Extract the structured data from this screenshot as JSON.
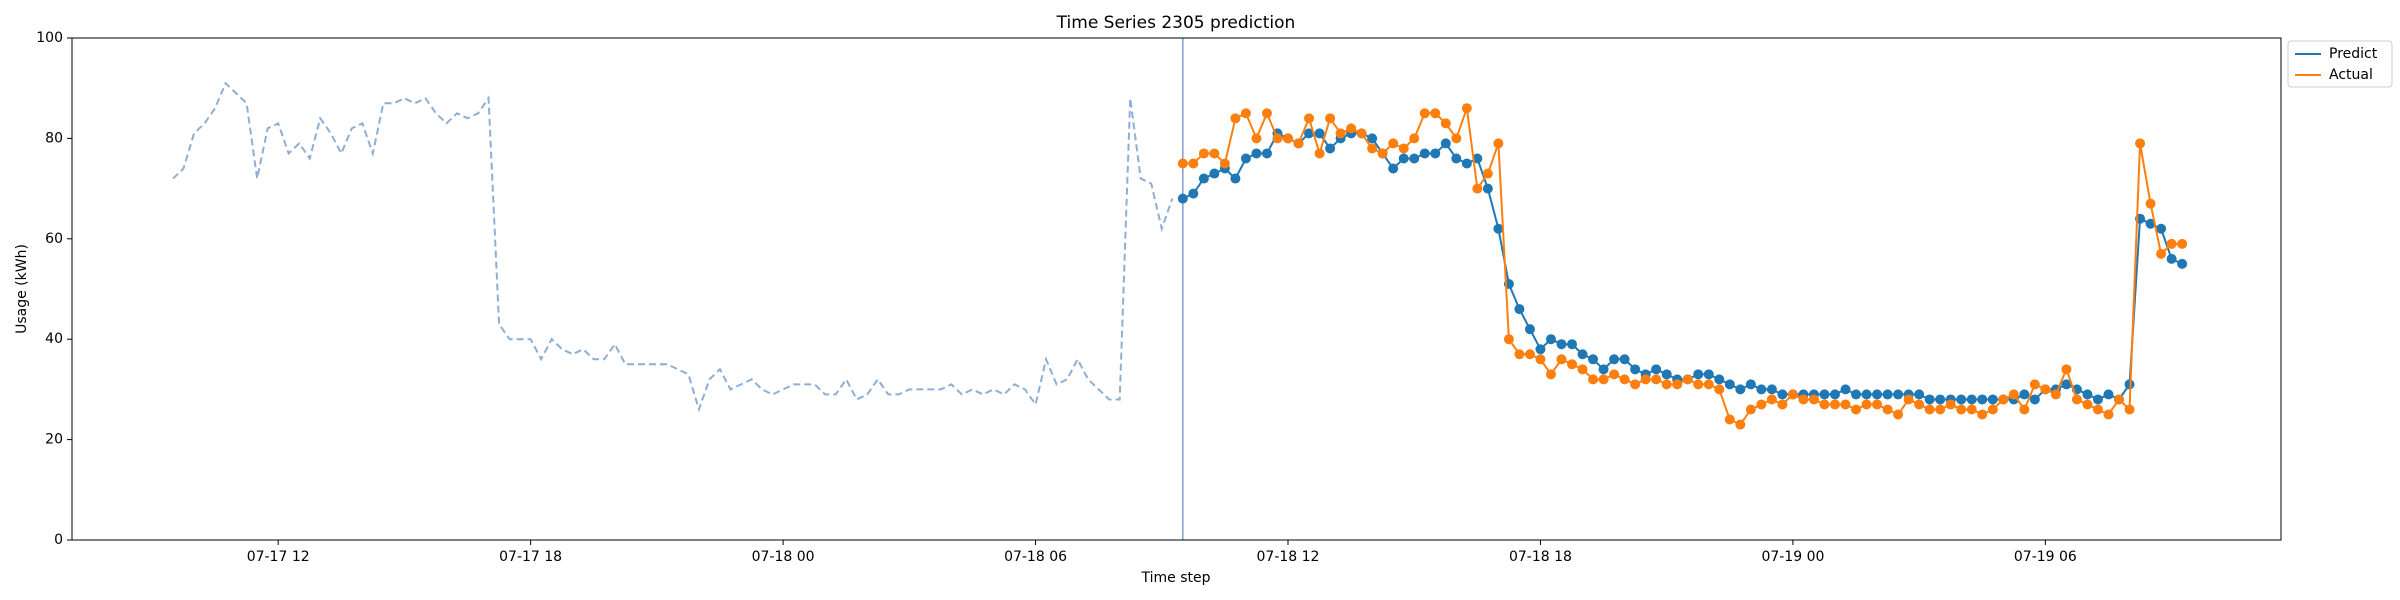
{
  "chart_data": {
    "type": "line",
    "title": "Time Series 2305 prediction",
    "xlabel": "Time step",
    "ylabel": "Usage (kWh)",
    "xlim": [
      7.1,
      59.6
    ],
    "ylim": [
      0,
      100
    ],
    "xticks": [
      {
        "value": 12,
        "label": "07-17 12"
      },
      {
        "value": 18,
        "label": "07-17 18"
      },
      {
        "value": 24,
        "label": "07-18 00"
      },
      {
        "value": 30,
        "label": "07-18 06"
      },
      {
        "value": 36,
        "label": "07-18 12"
      },
      {
        "value": 42,
        "label": "07-18 18"
      },
      {
        "value": 48,
        "label": "07-19 00"
      },
      {
        "value": 54,
        "label": "07-19 06"
      }
    ],
    "yticks": [
      0,
      20,
      40,
      60,
      80,
      100
    ],
    "legend": "upper right outside",
    "forecast_start": 33.5,
    "forecast_line_color": "#7f9fd0",
    "history": {
      "color": "#8faed3",
      "x": [
        9.5,
        9.75,
        10,
        10.25,
        10.5,
        10.75,
        11,
        11.25,
        11.5,
        11.75,
        12,
        12.25,
        12.5,
        12.75,
        13,
        13.25,
        13.5,
        13.75,
        14,
        14.25,
        14.5,
        14.75,
        15,
        15.25,
        15.5,
        15.75,
        16,
        16.25,
        16.5,
        16.75,
        17,
        17.25,
        17.5,
        17.75,
        18,
        18.25,
        18.5,
        18.75,
        19,
        19.25,
        19.5,
        19.75,
        20,
        20.25,
        20.5,
        20.75,
        21,
        21.25,
        21.5,
        21.75,
        22,
        22.25,
        22.5,
        22.75,
        23,
        23.25,
        23.5,
        23.75,
        24,
        24.25,
        24.5,
        24.75,
        25,
        25.25,
        25.5,
        25.75,
        26,
        26.25,
        26.5,
        26.75,
        27,
        27.25,
        27.5,
        27.75,
        28,
        28.25,
        28.5,
        28.75,
        29,
        29.25,
        29.5,
        29.75,
        30,
        30.25,
        30.5,
        30.75,
        31,
        31.25,
        31.5,
        31.75,
        32,
        32.25,
        32.5,
        32.75,
        33,
        33.25
      ],
      "values": [
        72,
        74,
        81,
        83,
        86,
        91,
        89,
        87,
        72,
        82,
        83,
        77,
        79,
        76,
        84,
        81,
        77,
        82,
        83,
        77,
        87,
        87,
        88,
        87,
        88,
        85,
        83,
        85,
        84,
        85,
        88,
        43,
        40,
        40,
        40,
        36,
        40,
        38,
        37,
        38,
        36,
        36,
        39,
        35,
        35,
        35,
        35,
        35,
        34,
        33,
        26,
        32,
        34,
        30,
        31,
        32,
        30,
        29,
        30,
        31,
        31,
        31,
        29,
        29,
        32,
        28,
        29,
        32,
        29,
        29,
        30,
        30,
        30,
        30,
        31,
        29,
        30,
        29,
        30,
        29,
        31,
        30,
        27,
        36,
        31,
        32,
        36,
        32,
        30,
        28,
        28,
        88,
        72,
        71,
        62,
        68
      ]
    },
    "x": [
      33.5,
      33.75,
      34,
      34.25,
      34.5,
      34.75,
      35,
      35.25,
      35.5,
      35.75,
      36,
      36.25,
      36.5,
      36.75,
      37,
      37.25,
      37.5,
      37.75,
      38,
      38.25,
      38.5,
      38.75,
      39,
      39.25,
      39.5,
      39.75,
      40,
      40.25,
      40.5,
      40.75,
      41,
      41.25,
      41.5,
      41.75,
      42,
      42.25,
      42.5,
      42.75,
      43,
      43.25,
      43.5,
      43.75,
      44,
      44.25,
      44.5,
      44.75,
      45,
      45.25,
      45.5,
      45.75,
      46,
      46.25,
      46.5,
      46.75,
      47,
      47.25,
      47.5,
      47.75,
      48,
      48.25,
      48.5,
      48.75,
      49,
      49.25,
      49.5,
      49.75,
      50,
      50.25,
      50.5,
      50.75,
      51,
      51.25,
      51.5,
      51.75,
      52,
      52.25,
      52.5,
      52.75,
      53,
      53.25,
      53.5,
      53.75,
      54,
      54.25,
      54.5,
      54.75,
      55,
      55.25,
      55.5,
      55.75,
      56,
      56.25,
      56.5,
      56.75,
      57,
      57.25
    ],
    "series": [
      {
        "name": "Predict",
        "color": "#1f77b4",
        "values": [
          68,
          69,
          72,
          73,
          74,
          72,
          76,
          77,
          77,
          81,
          80,
          79,
          81,
          81,
          78,
          80,
          81,
          81,
          80,
          77,
          74,
          76,
          76,
          77,
          77,
          79,
          76,
          75,
          76,
          70,
          62,
          51,
          46,
          42,
          38,
          40,
          39,
          39,
          37,
          36,
          34,
          36,
          36,
          34,
          33,
          34,
          33,
          32,
          32,
          33,
          33,
          32,
          31,
          30,
          31,
          30,
          30,
          29,
          29,
          29,
          29,
          29,
          29,
          30,
          29,
          29,
          29,
          29,
          29,
          29,
          29,
          28,
          28,
          28,
          28,
          28,
          28,
          28,
          28,
          28,
          29,
          28,
          30,
          30,
          31,
          30,
          29,
          28,
          29,
          28,
          31,
          64,
          63,
          62,
          56,
          55
        ]
      },
      {
        "name": "Actual",
        "color": "#ff7f0e",
        "values": [
          75,
          75,
          77,
          77,
          75,
          84,
          85,
          80,
          85,
          80,
          80,
          79,
          84,
          77,
          84,
          81,
          82,
          81,
          78,
          77,
          79,
          78,
          80,
          85,
          85,
          83,
          80,
          86,
          70,
          73,
          79,
          40,
          37,
          37,
          36,
          33,
          36,
          35,
          34,
          32,
          32,
          33,
          32,
          31,
          32,
          32,
          31,
          31,
          32,
          31,
          31,
          30,
          24,
          23,
          26,
          27,
          28,
          27,
          29,
          28,
          28,
          27,
          27,
          27,
          26,
          27,
          27,
          26,
          25,
          28,
          27,
          26,
          26,
          27,
          26,
          26,
          25,
          26,
          28,
          29,
          26,
          31,
          30,
          29,
          34,
          28,
          27,
          26,
          25,
          28,
          26,
          79,
          67,
          57,
          59,
          59
        ]
      }
    ]
  }
}
